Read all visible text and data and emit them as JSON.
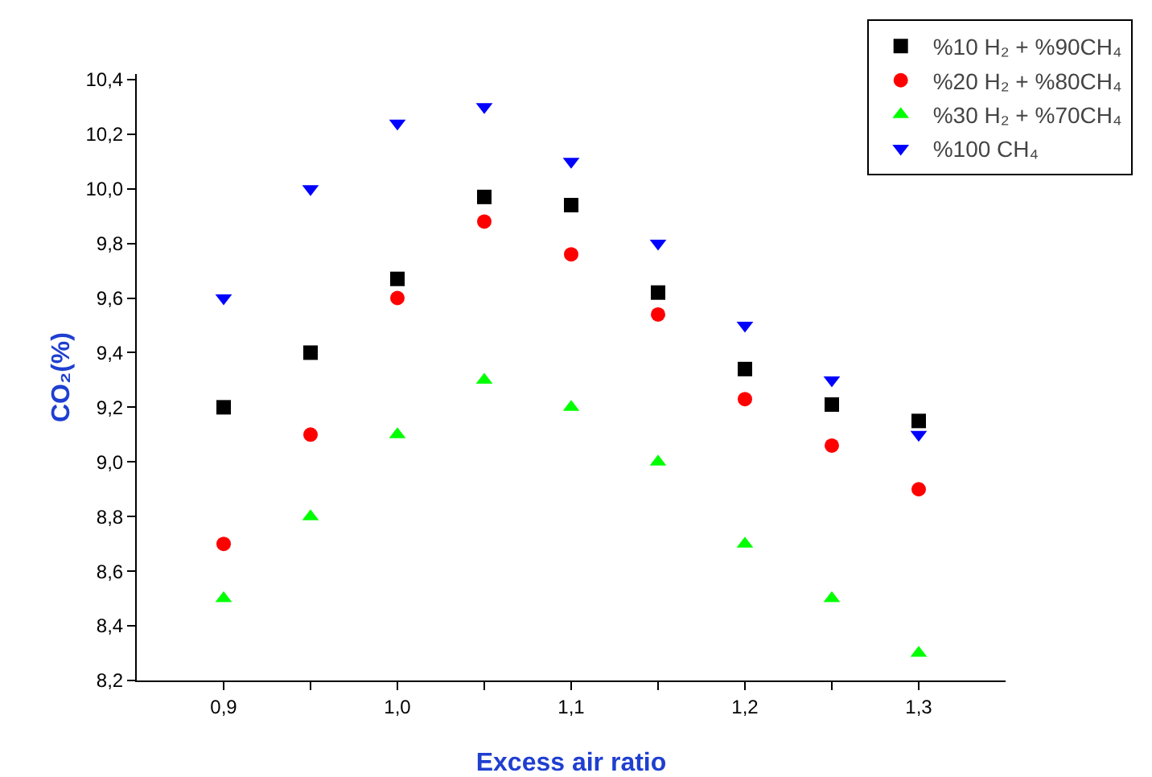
{
  "chart_data": {
    "type": "scatter",
    "xlabel": "Excess air ratio",
    "ylabel": "CO₂(%)",
    "x": [
      0.9,
      0.95,
      1.0,
      1.05,
      1.1,
      1.15,
      1.2,
      1.25,
      1.3
    ],
    "series": [
      {
        "name": "%10 H₂ + %90CH₄",
        "color": "#000000",
        "marker": "square",
        "values": [
          9.2,
          9.4,
          9.67,
          9.97,
          9.94,
          9.62,
          9.34,
          9.21,
          9.15
        ]
      },
      {
        "name": "%20 H₂ + %80CH₄",
        "color": "#ff0000",
        "marker": "circle",
        "values": [
          8.7,
          9.1,
          9.6,
          9.88,
          9.76,
          9.54,
          9.23,
          9.06,
          8.9
        ]
      },
      {
        "name": "%30 H₂ + %70CH₄",
        "color": "#00ff00",
        "marker": "triangle",
        "values": [
          8.5,
          8.8,
          9.1,
          9.3,
          9.2,
          9.0,
          8.7,
          8.5,
          8.3
        ]
      },
      {
        "name": "%100 CH₄",
        "color": "#0000ff",
        "marker": "triangle-down",
        "values": [
          9.6,
          10.0,
          10.24,
          10.3,
          10.1,
          9.8,
          9.5,
          9.3,
          9.1
        ]
      }
    ],
    "xlim": [
      0.85,
      1.35
    ],
    "xticks": [
      {
        "value": 0.9,
        "label": "0,9"
      },
      {
        "value": 0.95,
        "label": null
      },
      {
        "value": 1.0,
        "label": "1,0"
      },
      {
        "value": 1.05,
        "label": null
      },
      {
        "value": 1.1,
        "label": "1,1"
      },
      {
        "value": 1.15,
        "label": null
      },
      {
        "value": 1.2,
        "label": "1,2"
      },
      {
        "value": 1.25,
        "label": null
      },
      {
        "value": 1.3,
        "label": "1,3"
      }
    ],
    "ylim": [
      8.2,
      10.42
    ],
    "yticks": [
      {
        "value": 8.2,
        "label": "8,2"
      },
      {
        "value": 8.4,
        "label": "8,4"
      },
      {
        "value": 8.6,
        "label": "8,6"
      },
      {
        "value": 8.8,
        "label": "8,8"
      },
      {
        "value": 9.0,
        "label": "9,0"
      },
      {
        "value": 9.2,
        "label": "9,2"
      },
      {
        "value": 9.4,
        "label": "9,4"
      },
      {
        "value": 9.6,
        "label": "9,6"
      },
      {
        "value": 9.8,
        "label": "9,8"
      },
      {
        "value": 10.0,
        "label": "10,0"
      },
      {
        "value": 10.2,
        "label": "10,2"
      },
      {
        "value": 10.4,
        "label": "10,4"
      }
    ],
    "grid": false,
    "legend": "top right"
  }
}
